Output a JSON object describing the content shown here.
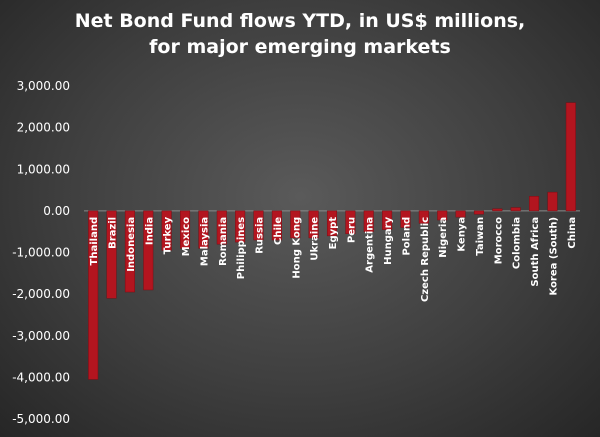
{
  "chart_data": {
    "type": "bar",
    "title_lines": [
      "Net Bond Fund flows YTD, in US$ millions,",
      "for major emerging markets"
    ],
    "xlabel": "",
    "ylabel": "",
    "ylim": [
      -5000,
      3000
    ],
    "yticks": [
      3000,
      2000,
      1000,
      0,
      -1000,
      -2000,
      -3000,
      -4000,
      -5000
    ],
    "ytick_labels": [
      "3,000.00",
      "2,000.00",
      "1,000.00",
      "0.00",
      "-1,000.00",
      "-2,000.00",
      "-3,000.00",
      "-4,000.00",
      "-5,000.00"
    ],
    "grid": false,
    "legend": "none",
    "categories": [
      "Thailand",
      "Brazil",
      "Indonesia",
      "India",
      "Turkey",
      "Mexico",
      "Malaysia",
      "Romania",
      "Philippines",
      "Russia",
      "Chile",
      "Hong Kong",
      "Ukraine",
      "Egypt",
      "Peru",
      "Argentina",
      "Hungary",
      "Poland",
      "Czech Republic",
      "Nigeria",
      "Kenya",
      "Taiwan",
      "Morocco",
      "Colombia",
      "South Africa",
      "Korea (South)",
      "China"
    ],
    "values": [
      -4050,
      -2100,
      -1950,
      -1900,
      -950,
      -900,
      -900,
      -800,
      -750,
      -700,
      -700,
      -650,
      -650,
      -600,
      -550,
      -500,
      -450,
      -400,
      -300,
      -220,
      -150,
      -80,
      50,
      80,
      350,
      450,
      2600
    ],
    "bar_color": "#b3151f"
  }
}
